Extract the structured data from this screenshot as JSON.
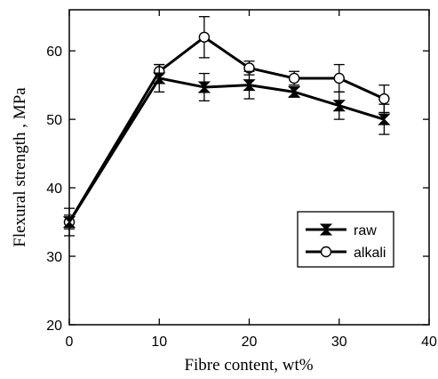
{
  "chart_data": {
    "type": "line",
    "title": "",
    "xlabel": "Fibre content, wt%",
    "ylabel": "Flexural strength , MPa",
    "xlim": [
      0,
      40
    ],
    "ylim": [
      20,
      66
    ],
    "xticks": [
      0,
      10,
      20,
      30,
      40
    ],
    "yticks": [
      20,
      30,
      40,
      50,
      60
    ],
    "grid": false,
    "legend_position": "bottom-right",
    "series": [
      {
        "name": "raw",
        "marker": "hourglass",
        "x": [
          0,
          10,
          15,
          20,
          25,
          30,
          35
        ],
        "y": [
          35,
          56,
          54.7,
          55,
          54,
          52,
          50
        ],
        "err": [
          2,
          2,
          2,
          2,
          0.7,
          2,
          2.2
        ]
      },
      {
        "name": "alkali",
        "marker": "open-circle",
        "x": [
          0,
          10,
          15,
          20,
          25,
          30,
          35
        ],
        "y": [
          35,
          57,
          62,
          57.5,
          56,
          56,
          53
        ],
        "err": [
          1,
          1,
          3,
          1,
          1,
          2,
          2
        ]
      }
    ]
  }
}
